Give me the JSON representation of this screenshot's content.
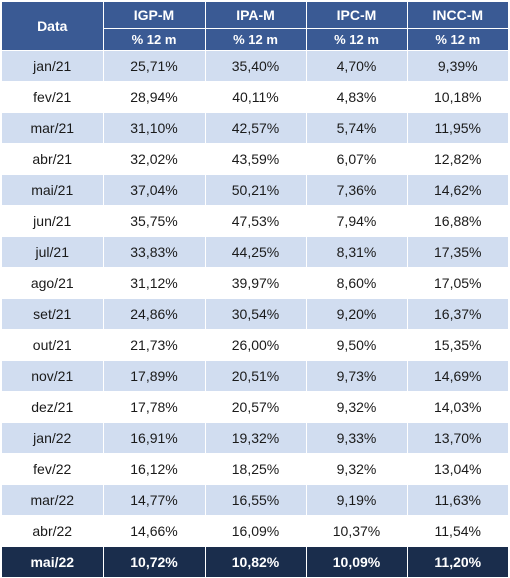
{
  "table": {
    "date_header": "Data",
    "columns": [
      "IGP-M",
      "IPA-M",
      "IPC-M",
      "INCC-M"
    ],
    "unit": "% 12 m",
    "rows": [
      [
        "jan/21",
        "25,71%",
        "35,40%",
        "4,70%",
        "9,39%"
      ],
      [
        "fev/21",
        "28,94%",
        "40,11%",
        "4,83%",
        "10,18%"
      ],
      [
        "mar/21",
        "31,10%",
        "42,57%",
        "5,74%",
        "11,95%"
      ],
      [
        "abr/21",
        "32,02%",
        "43,59%",
        "6,07%",
        "12,82%"
      ],
      [
        "mai/21",
        "37,04%",
        "50,21%",
        "7,36%",
        "14,62%"
      ],
      [
        "jun/21",
        "35,75%",
        "47,53%",
        "7,94%",
        "16,88%"
      ],
      [
        "jul/21",
        "33,83%",
        "44,25%",
        "8,31%",
        "17,35%"
      ],
      [
        "ago/21",
        "31,12%",
        "39,97%",
        "8,60%",
        "17,05%"
      ],
      [
        "set/21",
        "24,86%",
        "30,54%",
        "9,20%",
        "16,37%"
      ],
      [
        "out/21",
        "21,73%",
        "26,00%",
        "9,50%",
        "15,35%"
      ],
      [
        "nov/21",
        "17,89%",
        "20,51%",
        "9,73%",
        "14,69%"
      ],
      [
        "dez/21",
        "17,78%",
        "20,57%",
        "9,32%",
        "14,03%"
      ],
      [
        "jan/22",
        "16,91%",
        "19,32%",
        "9,33%",
        "13,70%"
      ],
      [
        "fev/22",
        "16,12%",
        "18,25%",
        "9,32%",
        "13,04%"
      ],
      [
        "mar/22",
        "14,77%",
        "16,55%",
        "9,19%",
        "11,63%"
      ],
      [
        "abr/22",
        "14,66%",
        "16,09%",
        "10,37%",
        "11,54%"
      ]
    ],
    "highlight_row": [
      "mai/22",
      "10,72%",
      "10,82%",
      "10,09%",
      "11,20%"
    ]
  },
  "colors": {
    "header_bg": "#3a5a94",
    "row_alt_bg": "#d1ddf0",
    "highlight_bg": "#1a2d4c"
  }
}
